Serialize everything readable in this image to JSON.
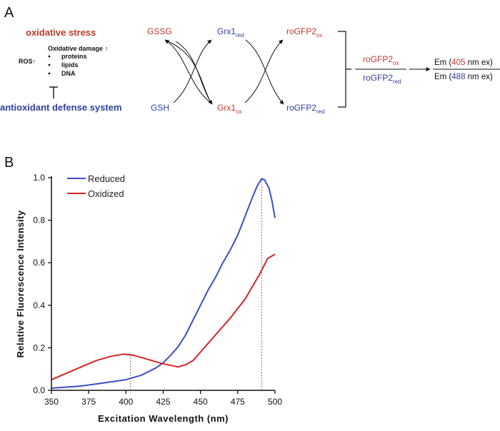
{
  "panel_a": {
    "label": "A",
    "oxidative_stress": "oxidative stress",
    "ros": "ROS",
    "ros_arrow": "↑",
    "damage_title": "Oxidative damage",
    "damage_arrow": "↑",
    "damage_items": [
      "proteins",
      "lipids",
      "DNA"
    ],
    "inhibit_symbol": "⊤",
    "antioxidant": "antioxidant defense system",
    "gssg": "GSSG",
    "gsh": "GSH",
    "grx": {
      "base": "Grx1",
      "red_sub": "red",
      "ox_sub": "ox"
    },
    "rogfp": {
      "base": "roGFP2",
      "ox_sub": "ox",
      "red_sub": "red"
    },
    "ratio": {
      "em1_pre": "Em (",
      "em1_val": "405",
      "em1_post": " nm ex)",
      "em2_pre": "Em (",
      "em2_val": "488",
      "em2_post": " nm ex)"
    },
    "colors": {
      "red": "#c0392b",
      "blue": "#2f3f9e"
    }
  },
  "panel_b": {
    "label": "B"
  },
  "chart_data": {
    "type": "line",
    "title": "",
    "xlabel": "Excitation Wavelength  (nm)",
    "ylabel": "Relative Fluorescence Intensity",
    "xlim": [
      350,
      500
    ],
    "ylim": [
      0,
      1.0
    ],
    "xticks": [
      350,
      375,
      400,
      425,
      450,
      475,
      500
    ],
    "yticks": [
      0.0,
      0.2,
      0.4,
      0.6,
      0.8,
      1.0
    ],
    "ytick_labels": [
      "0.0",
      "0.2",
      "0.4",
      "0.6",
      "0.8",
      "1.0"
    ],
    "legend_position": "top-left",
    "reference_lines_x": [
      403,
      491
    ],
    "series": [
      {
        "name": "Reduced",
        "color": "#3a4fc8",
        "x": [
          350,
          360,
          370,
          380,
          390,
          400,
          410,
          420,
          425,
          430,
          435,
          440,
          445,
          450,
          455,
          460,
          465,
          470,
          475,
          480,
          485,
          488,
          491,
          493,
          496,
          498,
          500
        ],
        "y": [
          0.01,
          0.015,
          0.02,
          0.03,
          0.04,
          0.05,
          0.07,
          0.105,
          0.13,
          0.165,
          0.205,
          0.26,
          0.33,
          0.4,
          0.47,
          0.53,
          0.6,
          0.66,
          0.73,
          0.82,
          0.91,
          0.96,
          0.995,
          0.99,
          0.95,
          0.89,
          0.81
        ]
      },
      {
        "name": "Oxidized",
        "color": "#d62424",
        "x": [
          350,
          360,
          370,
          380,
          390,
          398,
          405,
          415,
          425,
          435,
          440,
          445,
          450,
          460,
          470,
          480,
          490,
          495,
          500
        ],
        "y": [
          0.05,
          0.08,
          0.11,
          0.14,
          0.16,
          0.17,
          0.165,
          0.145,
          0.125,
          0.11,
          0.12,
          0.14,
          0.18,
          0.26,
          0.34,
          0.43,
          0.55,
          0.62,
          0.64
        ]
      }
    ]
  }
}
